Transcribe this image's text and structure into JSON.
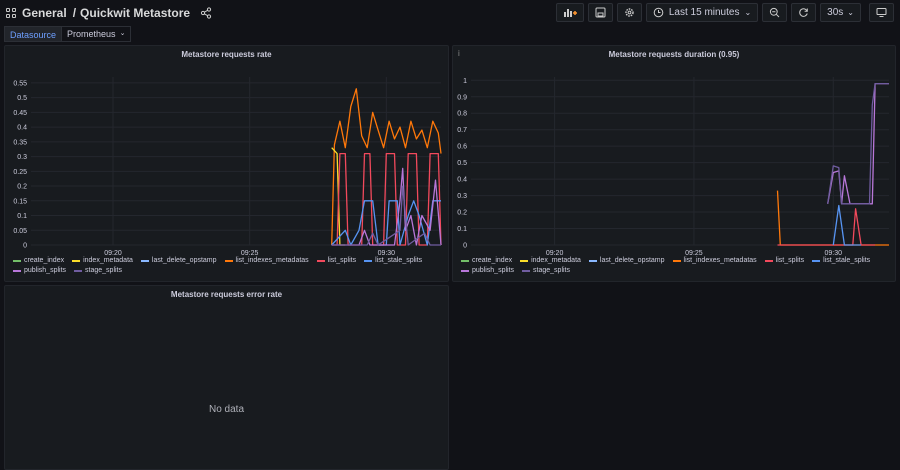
{
  "header": {
    "folder": "General",
    "separator": "/",
    "dashboard_title": "Quickwit Metastore",
    "time_range_label": "Last 15 minutes",
    "refresh_interval": "30s"
  },
  "variables": {
    "datasource_label": "Datasource",
    "datasource_value": "Prometheus"
  },
  "panels": {
    "rate_title": "Metastore requests rate",
    "duration_title": "Metastore requests duration (0.95)",
    "duration_info": "i",
    "error_title": "Metastore requests error rate",
    "error_nodata": "No data"
  },
  "colors": {
    "create_index": "#73bf69",
    "index_metadata": "#fade2a",
    "last_delete_opstamp": "#8ab8ff",
    "list_indexes_metadatas": "#ff780a",
    "list_splits": "#f2495c",
    "list_stale_splits": "#5794f2",
    "publish_splits": "#b877d9",
    "stage_splits": "#705da0"
  },
  "chart_data": [
    {
      "type": "line",
      "title": "Metastore requests rate",
      "x_tick_labels": [
        "09:20",
        "09:25",
        "09:30"
      ],
      "x_domain": [
        0,
        15
      ],
      "x_ticks": [
        3,
        8,
        13
      ],
      "y_tick_labels": [
        "0",
        "0.05",
        "0.1",
        "0.15",
        "0.2",
        "0.25",
        "0.3",
        "0.35",
        "0.4",
        "0.45",
        "0.5",
        "0.55"
      ],
      "ylim": [
        0,
        0.57
      ],
      "legend": [
        "create_index",
        "index_metadata",
        "last_delete_opstamp",
        "list_indexes_metadatas",
        "list_splits",
        "list_stale_splits",
        "publish_splits",
        "stage_splits"
      ],
      "series": [
        {
          "name": "list_indexes_metadatas",
          "points": [
            [
              11.0,
              0
            ],
            [
              11.1,
              0.34
            ],
            [
              11.3,
              0.42
            ],
            [
              11.5,
              0.33
            ],
            [
              11.7,
              0.47
            ],
            [
              11.9,
              0.53
            ],
            [
              12.1,
              0.37
            ],
            [
              12.3,
              0.33
            ],
            [
              12.5,
              0.45
            ],
            [
              12.7,
              0.39
            ],
            [
              12.9,
              0.33
            ],
            [
              13.1,
              0.42
            ],
            [
              13.3,
              0.36
            ],
            [
              13.5,
              0.4
            ],
            [
              13.7,
              0.33
            ],
            [
              13.9,
              0.42
            ],
            [
              14.1,
              0.36
            ],
            [
              14.3,
              0.39
            ],
            [
              14.5,
              0.33
            ],
            [
              14.7,
              0.42
            ],
            [
              14.9,
              0.38
            ],
            [
              15.0,
              0.31
            ]
          ]
        },
        {
          "name": "index_metadata",
          "points": [
            [
              11.0,
              0.33
            ],
            [
              11.2,
              0.31
            ],
            [
              11.3,
              0
            ],
            [
              11.5,
              0
            ]
          ]
        },
        {
          "name": "list_splits",
          "points": [
            [
              11.0,
              0
            ],
            [
              11.2,
              0
            ],
            [
              11.3,
              0.31
            ],
            [
              11.5,
              0.31
            ],
            [
              11.6,
              0
            ],
            [
              12.1,
              0
            ],
            [
              12.2,
              0.31
            ],
            [
              12.4,
              0.31
            ],
            [
              12.5,
              0
            ],
            [
              12.9,
              0
            ],
            [
              13.0,
              0.31
            ],
            [
              13.3,
              0.31
            ],
            [
              13.4,
              0
            ],
            [
              13.7,
              0
            ],
            [
              13.8,
              0.31
            ],
            [
              14.1,
              0.31
            ],
            [
              14.2,
              0
            ],
            [
              14.5,
              0
            ],
            [
              14.6,
              0.31
            ],
            [
              14.9,
              0.31
            ],
            [
              15.0,
              0
            ]
          ]
        },
        {
          "name": "list_stale_splits",
          "points": [
            [
              11.0,
              0
            ],
            [
              11.5,
              0.05
            ],
            [
              11.7,
              0
            ],
            [
              12.0,
              0.05
            ],
            [
              12.2,
              0.15
            ],
            [
              12.5,
              0.15
            ],
            [
              12.7,
              0
            ],
            [
              13.0,
              0
            ],
            [
              13.1,
              0.15
            ],
            [
              13.4,
              0.15
            ],
            [
              13.5,
              0
            ],
            [
              13.8,
              0.1
            ],
            [
              14.0,
              0.15
            ],
            [
              14.2,
              0.1
            ],
            [
              14.5,
              0
            ],
            [
              14.7,
              0.15
            ],
            [
              15.0,
              0.15
            ]
          ]
        },
        {
          "name": "publish_splits",
          "points": [
            [
              11.0,
              0
            ],
            [
              12.0,
              0
            ],
            [
              12.2,
              0.05
            ],
            [
              12.4,
              0
            ],
            [
              13.3,
              0
            ],
            [
              13.5,
              0.15
            ],
            [
              13.6,
              0.26
            ],
            [
              13.7,
              0.05
            ],
            [
              13.9,
              0.1
            ],
            [
              14.1,
              0
            ],
            [
              14.3,
              0.1
            ],
            [
              14.6,
              0.05
            ],
            [
              14.8,
              0.22
            ],
            [
              15.0,
              0
            ]
          ]
        },
        {
          "name": "stage_splits",
          "points": [
            [
              11.0,
              0
            ],
            [
              12.3,
              0
            ],
            [
              12.5,
              0.04
            ],
            [
              12.7,
              0
            ],
            [
              13.5,
              0.05
            ],
            [
              13.6,
              0.2
            ],
            [
              13.8,
              0
            ],
            [
              14.4,
              0.04
            ],
            [
              14.6,
              0
            ],
            [
              15.0,
              0
            ]
          ]
        }
      ]
    },
    {
      "type": "line",
      "title": "Metastore requests duration (0.95)",
      "x_tick_labels": [
        "09:20",
        "09:25",
        "09:30"
      ],
      "x_domain": [
        0,
        15
      ],
      "x_ticks": [
        3,
        8,
        13
      ],
      "y_tick_labels": [
        "0",
        "0.1",
        "0.2",
        "0.3",
        "0.4",
        "0.5",
        "0.6",
        "0.7",
        "0.8",
        "0.9",
        "1"
      ],
      "ylim": [
        0,
        1.02
      ],
      "legend": [
        "create_index",
        "index_metadata",
        "last_delete_opstamp",
        "list_indexes_metadatas",
        "list_splits",
        "list_stale_splits",
        "publish_splits",
        "stage_splits"
      ],
      "series": [
        {
          "name": "list_indexes_metadatas",
          "points": [
            [
              11.0,
              0.33
            ],
            [
              11.1,
              0
            ],
            [
              15.0,
              0
            ]
          ]
        },
        {
          "name": "list_splits",
          "points": [
            [
              11.0,
              0
            ],
            [
              13.7,
              0
            ],
            [
              13.8,
              0.22
            ],
            [
              14.0,
              0
            ],
            [
              14.5,
              0
            ]
          ]
        },
        {
          "name": "list_stale_splits",
          "points": [
            [
              13.0,
              0
            ],
            [
              13.2,
              0.24
            ],
            [
              13.4,
              0
            ],
            [
              14.0,
              0
            ]
          ]
        },
        {
          "name": "publish_splits",
          "points": [
            [
              12.8,
              0.25
            ],
            [
              13.0,
              0.44
            ],
            [
              13.2,
              0.45
            ],
            [
              13.3,
              0.25
            ],
            [
              13.4,
              0.42
            ],
            [
              13.6,
              0.25
            ],
            [
              14.4,
              0.25
            ],
            [
              14.5,
              0.98
            ],
            [
              15.0,
              0.98
            ]
          ]
        },
        {
          "name": "stage_splits",
          "points": [
            [
              12.8,
              0.25
            ],
            [
              13.0,
              0.48
            ],
            [
              13.2,
              0.47
            ],
            [
              13.3,
              0.25
            ],
            [
              14.3,
              0.25
            ],
            [
              14.4,
              0.85
            ],
            [
              14.5,
              0.98
            ],
            [
              15.0,
              0.98
            ]
          ]
        }
      ]
    }
  ]
}
